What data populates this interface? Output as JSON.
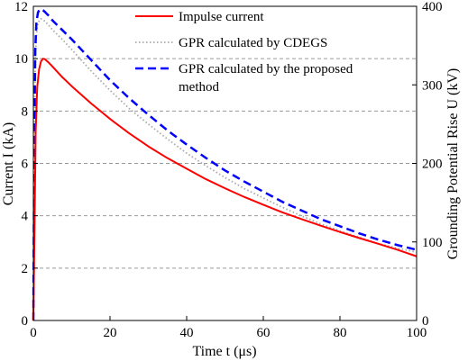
{
  "chart_data": {
    "type": "line",
    "title": "",
    "xlabel": "Time t (μs)",
    "ylabel_left": "Current I (kA)",
    "ylabel_right": "Grounding Potential Rise U (kV)",
    "xlim": [
      0,
      100
    ],
    "ylim_left": [
      0,
      12
    ],
    "ylim_right": [
      0,
      400
    ],
    "x_ticks": [
      "0",
      "20",
      "40",
      "60",
      "80",
      "100"
    ],
    "y_ticks_left": [
      "0",
      "2",
      "4",
      "6",
      "8",
      "10",
      "12"
    ],
    "y_ticks_right": [
      "0",
      "100",
      "200",
      "300",
      "400"
    ],
    "grid": "horizontal dashed",
    "legend_position": "top-right",
    "series": [
      {
        "name": "Impulse current",
        "axis": "left",
        "color": "#ff0000",
        "style": "solid",
        "x": [
          0,
          0.3,
          0.6,
          1,
          1.5,
          2,
          2.5,
          3,
          4,
          5,
          7.5,
          10,
          15,
          20,
          25,
          30,
          35,
          40,
          45,
          50,
          55,
          60,
          65,
          70,
          75,
          80,
          85,
          90,
          95,
          100
        ],
        "values": [
          0,
          3.5,
          7.2,
          8.9,
          9.6,
          9.9,
          10.0,
          9.98,
          9.85,
          9.7,
          9.3,
          8.95,
          8.3,
          7.7,
          7.15,
          6.65,
          6.2,
          5.8,
          5.4,
          5.05,
          4.72,
          4.42,
          4.13,
          3.87,
          3.62,
          3.38,
          3.15,
          2.93,
          2.7,
          2.45
        ]
      },
      {
        "name": "GPR calculated by CDEGS",
        "axis": "right",
        "color": "#a8a8a8",
        "style": "dotted",
        "x": [
          0,
          0.2,
          0.5,
          0.8,
          1.2,
          1.6,
          2,
          2.5,
          3,
          4,
          5,
          7.5,
          10,
          15,
          20,
          25,
          30,
          35,
          40,
          45,
          50,
          55,
          60,
          65,
          70,
          75,
          80,
          85,
          90,
          95,
          100
        ],
        "values": [
          0,
          180,
          330,
          365,
          378,
          383,
          384,
          383,
          381,
          376,
          370,
          358,
          345,
          318,
          293,
          270,
          250,
          231,
          213,
          197,
          182,
          168,
          156,
          144,
          133,
          123,
          114,
          106,
          98,
          92,
          87
        ]
      },
      {
        "name": "GPR calculated by the proposed method",
        "axis": "right",
        "color": "#0000ff",
        "style": "dashed",
        "x": [
          0,
          0.2,
          0.5,
          0.8,
          1.2,
          1.6,
          2,
          2.5,
          3,
          4,
          5,
          7.5,
          10,
          15,
          20,
          25,
          30,
          35,
          40,
          45,
          50,
          55,
          60,
          65,
          70,
          75,
          80,
          85,
          90,
          95,
          100
        ],
        "values": [
          0,
          190,
          345,
          380,
          392,
          396,
          396,
          395,
          393,
          388,
          382,
          370,
          358,
          332,
          306,
          283,
          262,
          242,
          224,
          207,
          191,
          177,
          164,
          151,
          140,
          129,
          120,
          111,
          103,
          96,
          90
        ]
      }
    ]
  }
}
